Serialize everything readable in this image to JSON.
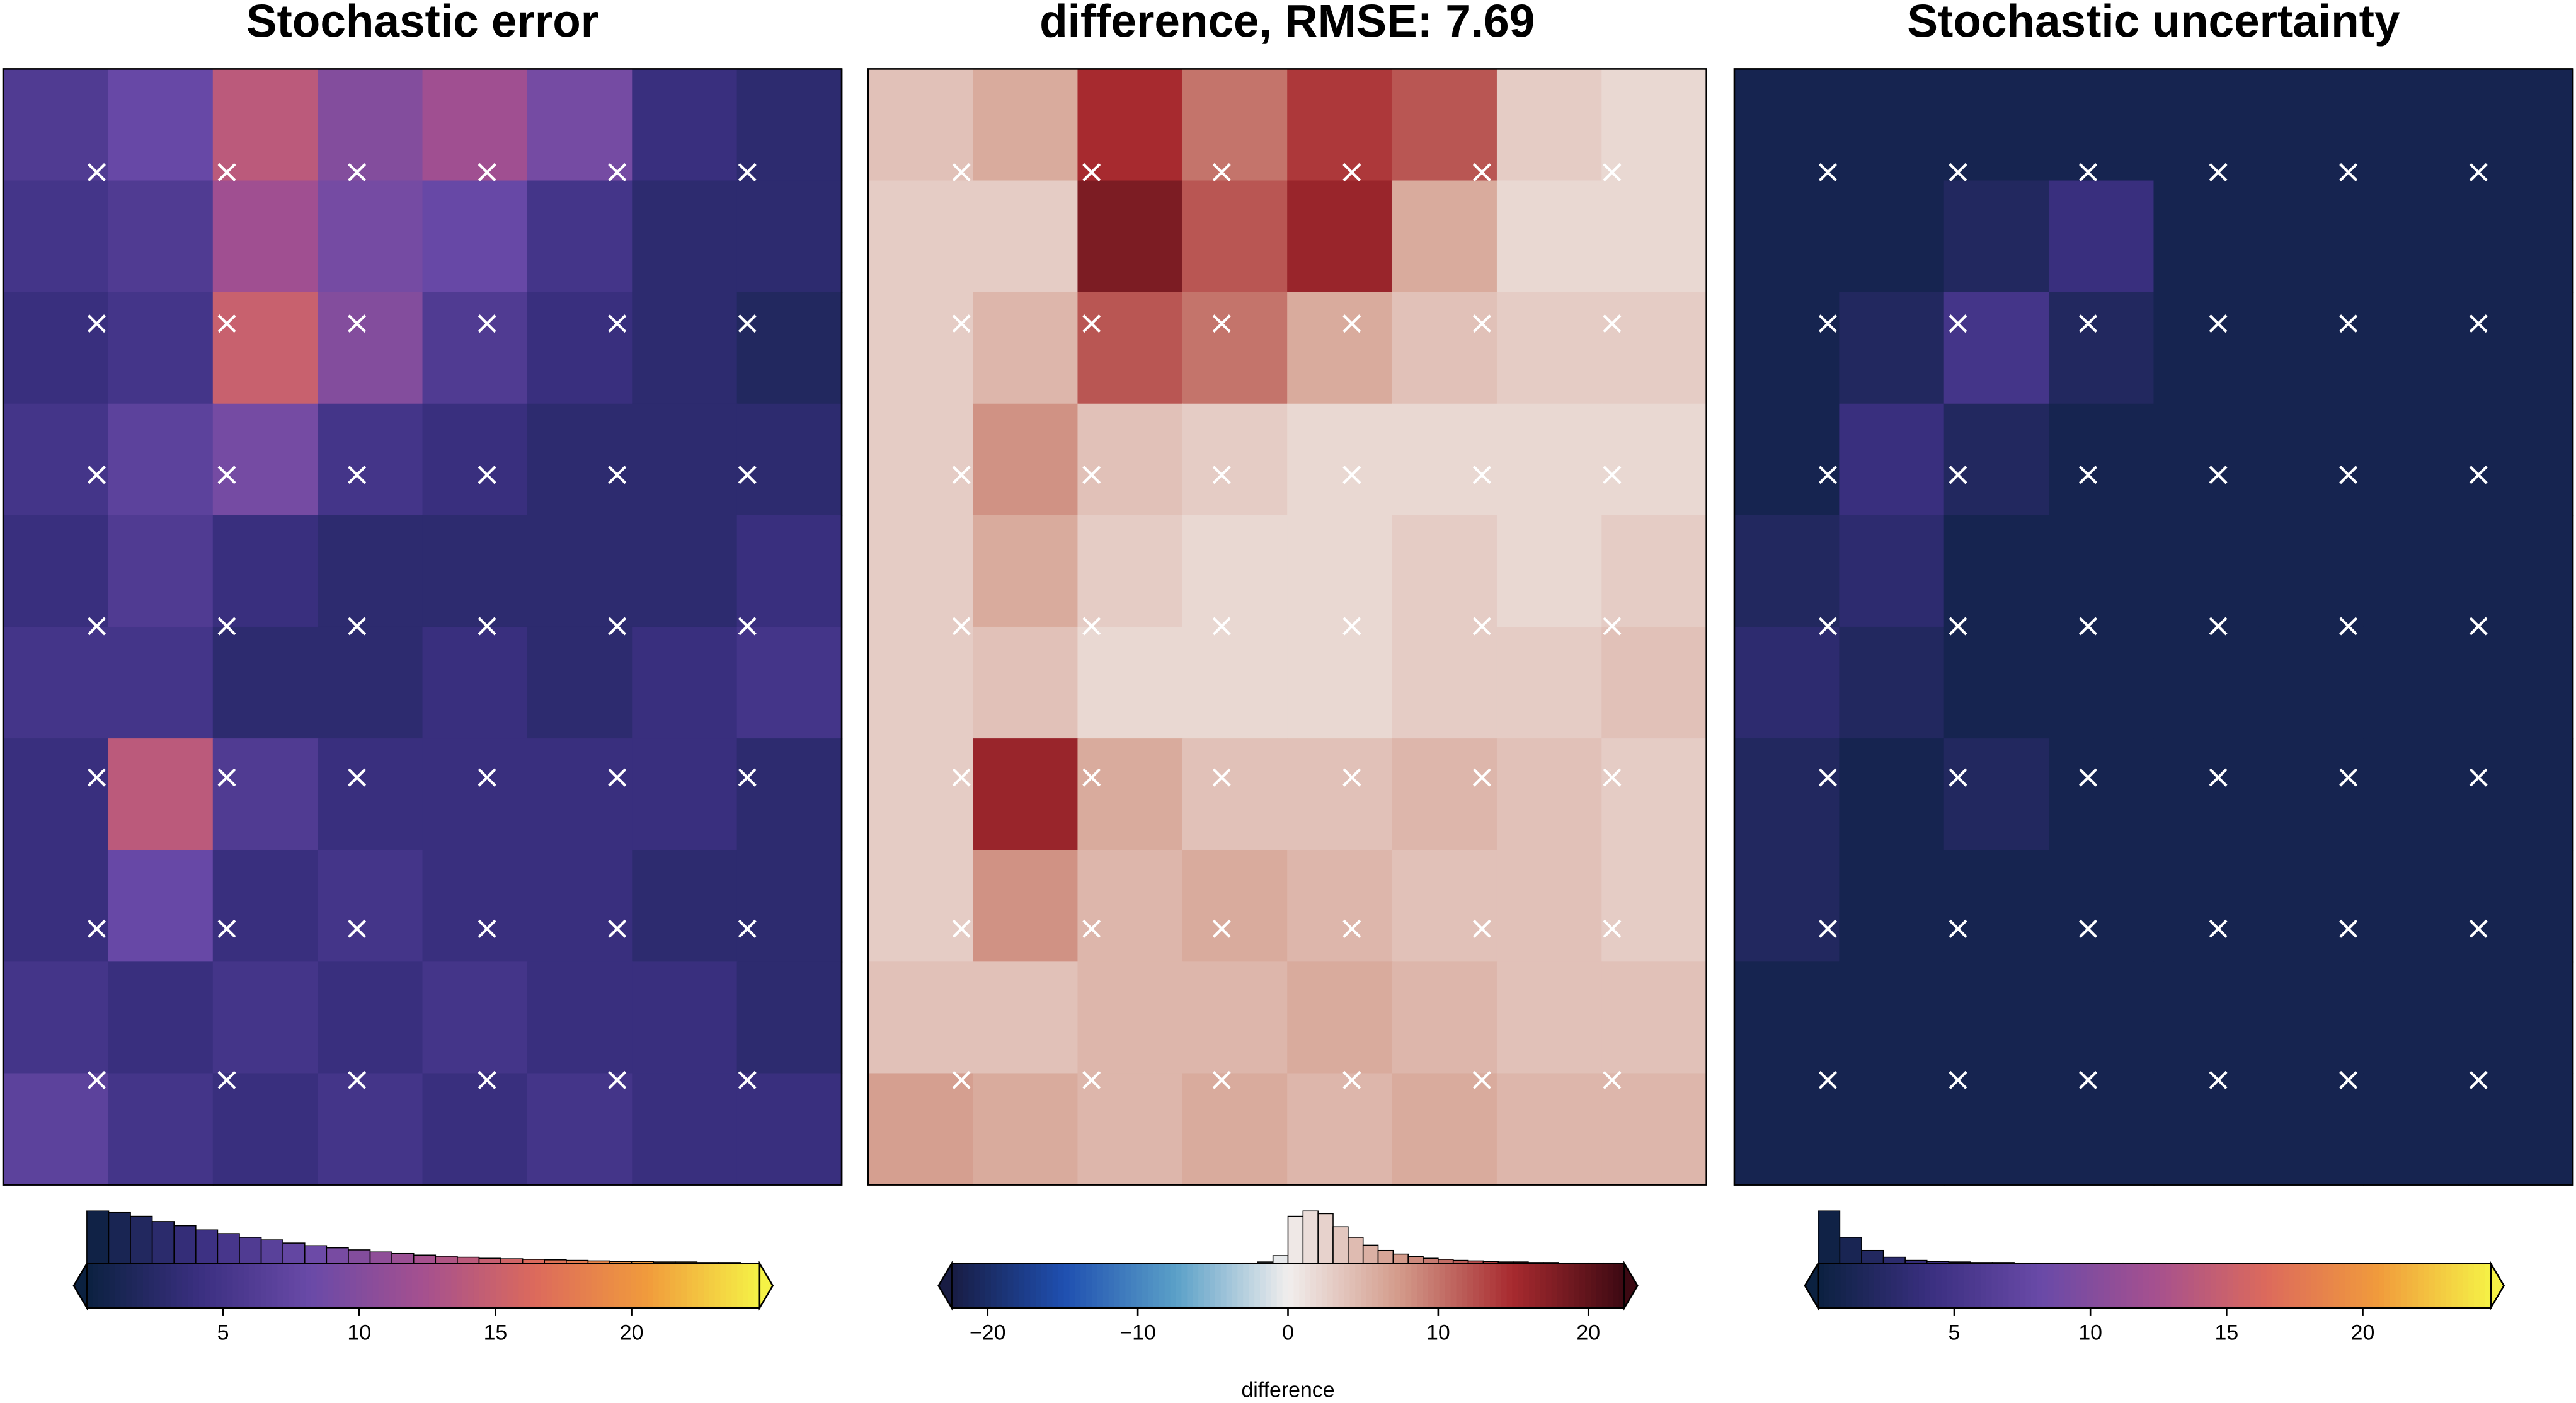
{
  "chart_data": [
    {
      "type": "heatmap",
      "title": "Stochastic error",
      "z": [
        [
          6,
          8,
          14,
          10,
          12,
          9,
          4,
          3
        ],
        [
          5,
          6,
          12,
          9,
          8,
          5,
          3,
          3
        ],
        [
          4,
          5,
          15,
          10,
          6,
          4,
          3,
          2
        ],
        [
          5,
          7,
          9,
          5,
          4,
          3,
          3,
          3
        ],
        [
          4,
          6,
          4,
          3,
          3,
          3,
          3,
          4
        ],
        [
          5,
          5,
          3,
          3,
          4,
          3,
          4,
          5
        ],
        [
          4,
          14,
          6,
          4,
          4,
          4,
          4,
          3
        ],
        [
          4,
          8,
          4,
          5,
          4,
          4,
          3,
          3
        ],
        [
          5,
          4,
          5,
          4,
          5,
          4,
          4,
          3
        ],
        [
          7,
          5,
          4,
          5,
          4,
          5,
          4,
          4
        ]
      ],
      "clim": [
        0,
        24.7
      ],
      "colormap": [
        "#0b2140",
        "#3a2f80",
        "#6a4aa8",
        "#a5508f",
        "#dc6a5c",
        "#f19b3c",
        "#f5f246"
      ],
      "cticks": [
        5,
        10,
        15,
        20
      ],
      "histogram": {
        "bins": [
          0,
          0.8,
          1.6,
          2.4,
          3.2,
          4,
          4.8,
          5.6,
          6.4,
          7.2,
          8,
          8.8,
          9.6,
          10.4,
          11.2,
          12,
          12.8,
          13.6,
          14.4,
          15.2,
          16,
          16.8,
          17.6,
          18.4,
          19.2,
          20,
          20.8,
          21.6,
          22.4,
          23.2,
          24
        ],
        "counts": [
          100,
          97,
          90,
          80,
          72,
          64,
          57,
          50,
          45,
          39,
          34,
          30,
          26,
          22,
          19,
          16,
          14,
          12,
          10,
          9,
          8,
          7,
          6,
          5,
          4,
          4,
          3,
          3,
          2,
          2
        ]
      }
    },
    {
      "type": "heatmap",
      "title": "difference, RMSE: 7.69",
      "z": [
        [
          4,
          6,
          15,
          10,
          14,
          12,
          3,
          2
        ],
        [
          3,
          3,
          18,
          12,
          16,
          6,
          2,
          2
        ],
        [
          3,
          5,
          12,
          10,
          6,
          4,
          3,
          3
        ],
        [
          3,
          8,
          4,
          3,
          2,
          2,
          2,
          2
        ],
        [
          3,
          6,
          3,
          2,
          2,
          3,
          2,
          3
        ],
        [
          3,
          4,
          2,
          2,
          2,
          3,
          3,
          4
        ],
        [
          3,
          16,
          6,
          4,
          4,
          5,
          4,
          3
        ],
        [
          3,
          8,
          5,
          6,
          5,
          4,
          4,
          3
        ],
        [
          4,
          4,
          5,
          5,
          6,
          5,
          4,
          4
        ],
        [
          7,
          6,
          5,
          6,
          5,
          6,
          5,
          5
        ]
      ],
      "clim": [
        -22.4,
        22.4
      ],
      "colormap": [
        "#181c43",
        "#1f4fb0",
        "#5aa0c8",
        "#f1eeed",
        "#d39a8a",
        "#a82a2f",
        "#3c0912"
      ],
      "cticks": [
        {
          "value": -20,
          "label": "−20"
        },
        {
          "value": -10,
          "label": "−10"
        },
        0,
        10,
        20
      ],
      "clabel": "difference",
      "histogram": {
        "bins": [
          -22,
          -21,
          -20,
          -19,
          -18,
          -17,
          -16,
          -15,
          -14,
          -13,
          -12,
          -11,
          -10,
          -9,
          -8,
          -7,
          -6,
          -5,
          -4,
          -3,
          -2,
          -1,
          0,
          1,
          2,
          3,
          4,
          5,
          6,
          7,
          8,
          9,
          10,
          11,
          12,
          13,
          14,
          15,
          16,
          17,
          18,
          19,
          20,
          21,
          22
        ],
        "counts": [
          0,
          0,
          0,
          0,
          0,
          0,
          0,
          0,
          0,
          0,
          0,
          0,
          0,
          0,
          0,
          0,
          0,
          0,
          0,
          1,
          3,
          15,
          90,
          100,
          95,
          70,
          50,
          35,
          25,
          18,
          13,
          10,
          8,
          6,
          5,
          4,
          3,
          3,
          2,
          2,
          1,
          1,
          1,
          1
        ]
      }
    },
    {
      "type": "heatmap",
      "title": "Stochastic uncertainty",
      "z": [
        [
          1,
          1,
          1,
          1,
          1,
          1,
          1,
          1
        ],
        [
          1,
          1,
          2,
          4,
          1,
          1,
          1,
          1
        ],
        [
          1,
          2,
          5,
          2,
          1,
          1,
          1,
          1
        ],
        [
          1,
          4,
          2,
          1,
          1,
          1,
          1,
          1
        ],
        [
          2,
          3,
          1,
          1,
          1,
          1,
          1,
          1
        ],
        [
          3,
          2,
          1,
          1,
          1,
          1,
          1,
          1
        ],
        [
          2,
          1,
          2,
          1,
          1,
          1,
          1,
          1
        ],
        [
          2,
          1,
          1,
          1,
          1,
          1,
          1,
          1
        ],
        [
          1,
          1,
          1,
          1,
          1,
          1,
          1,
          1
        ],
        [
          1,
          1,
          1,
          1,
          1,
          1,
          1,
          1
        ]
      ],
      "clim": [
        0,
        24.7
      ],
      "colormap": [
        "#0b2140",
        "#3a2f80",
        "#6a4aa8",
        "#a5508f",
        "#dc6a5c",
        "#f19b3c",
        "#f5f246"
      ],
      "cticks": [
        5,
        10,
        15,
        20
      ],
      "histogram": {
        "bins": [
          0,
          0.8,
          1.6,
          2.4,
          3.2,
          4,
          4.8,
          5.6,
          6.4,
          7.2,
          8,
          8.8,
          9.6,
          10.4,
          11.2,
          12,
          12.8,
          13.6,
          14.4,
          15.2,
          16,
          16.8,
          17.6,
          18.4,
          19.2,
          20,
          20.8,
          21.6,
          22.4,
          23.2,
          24
        ],
        "counts": [
          100,
          50,
          25,
          12,
          6,
          4,
          3,
          2,
          2,
          1,
          1,
          1,
          1,
          1,
          1,
          1,
          0,
          0,
          0,
          0,
          0,
          0,
          0,
          0,
          0,
          0,
          0,
          0,
          0,
          0
        ]
      }
    }
  ]
}
